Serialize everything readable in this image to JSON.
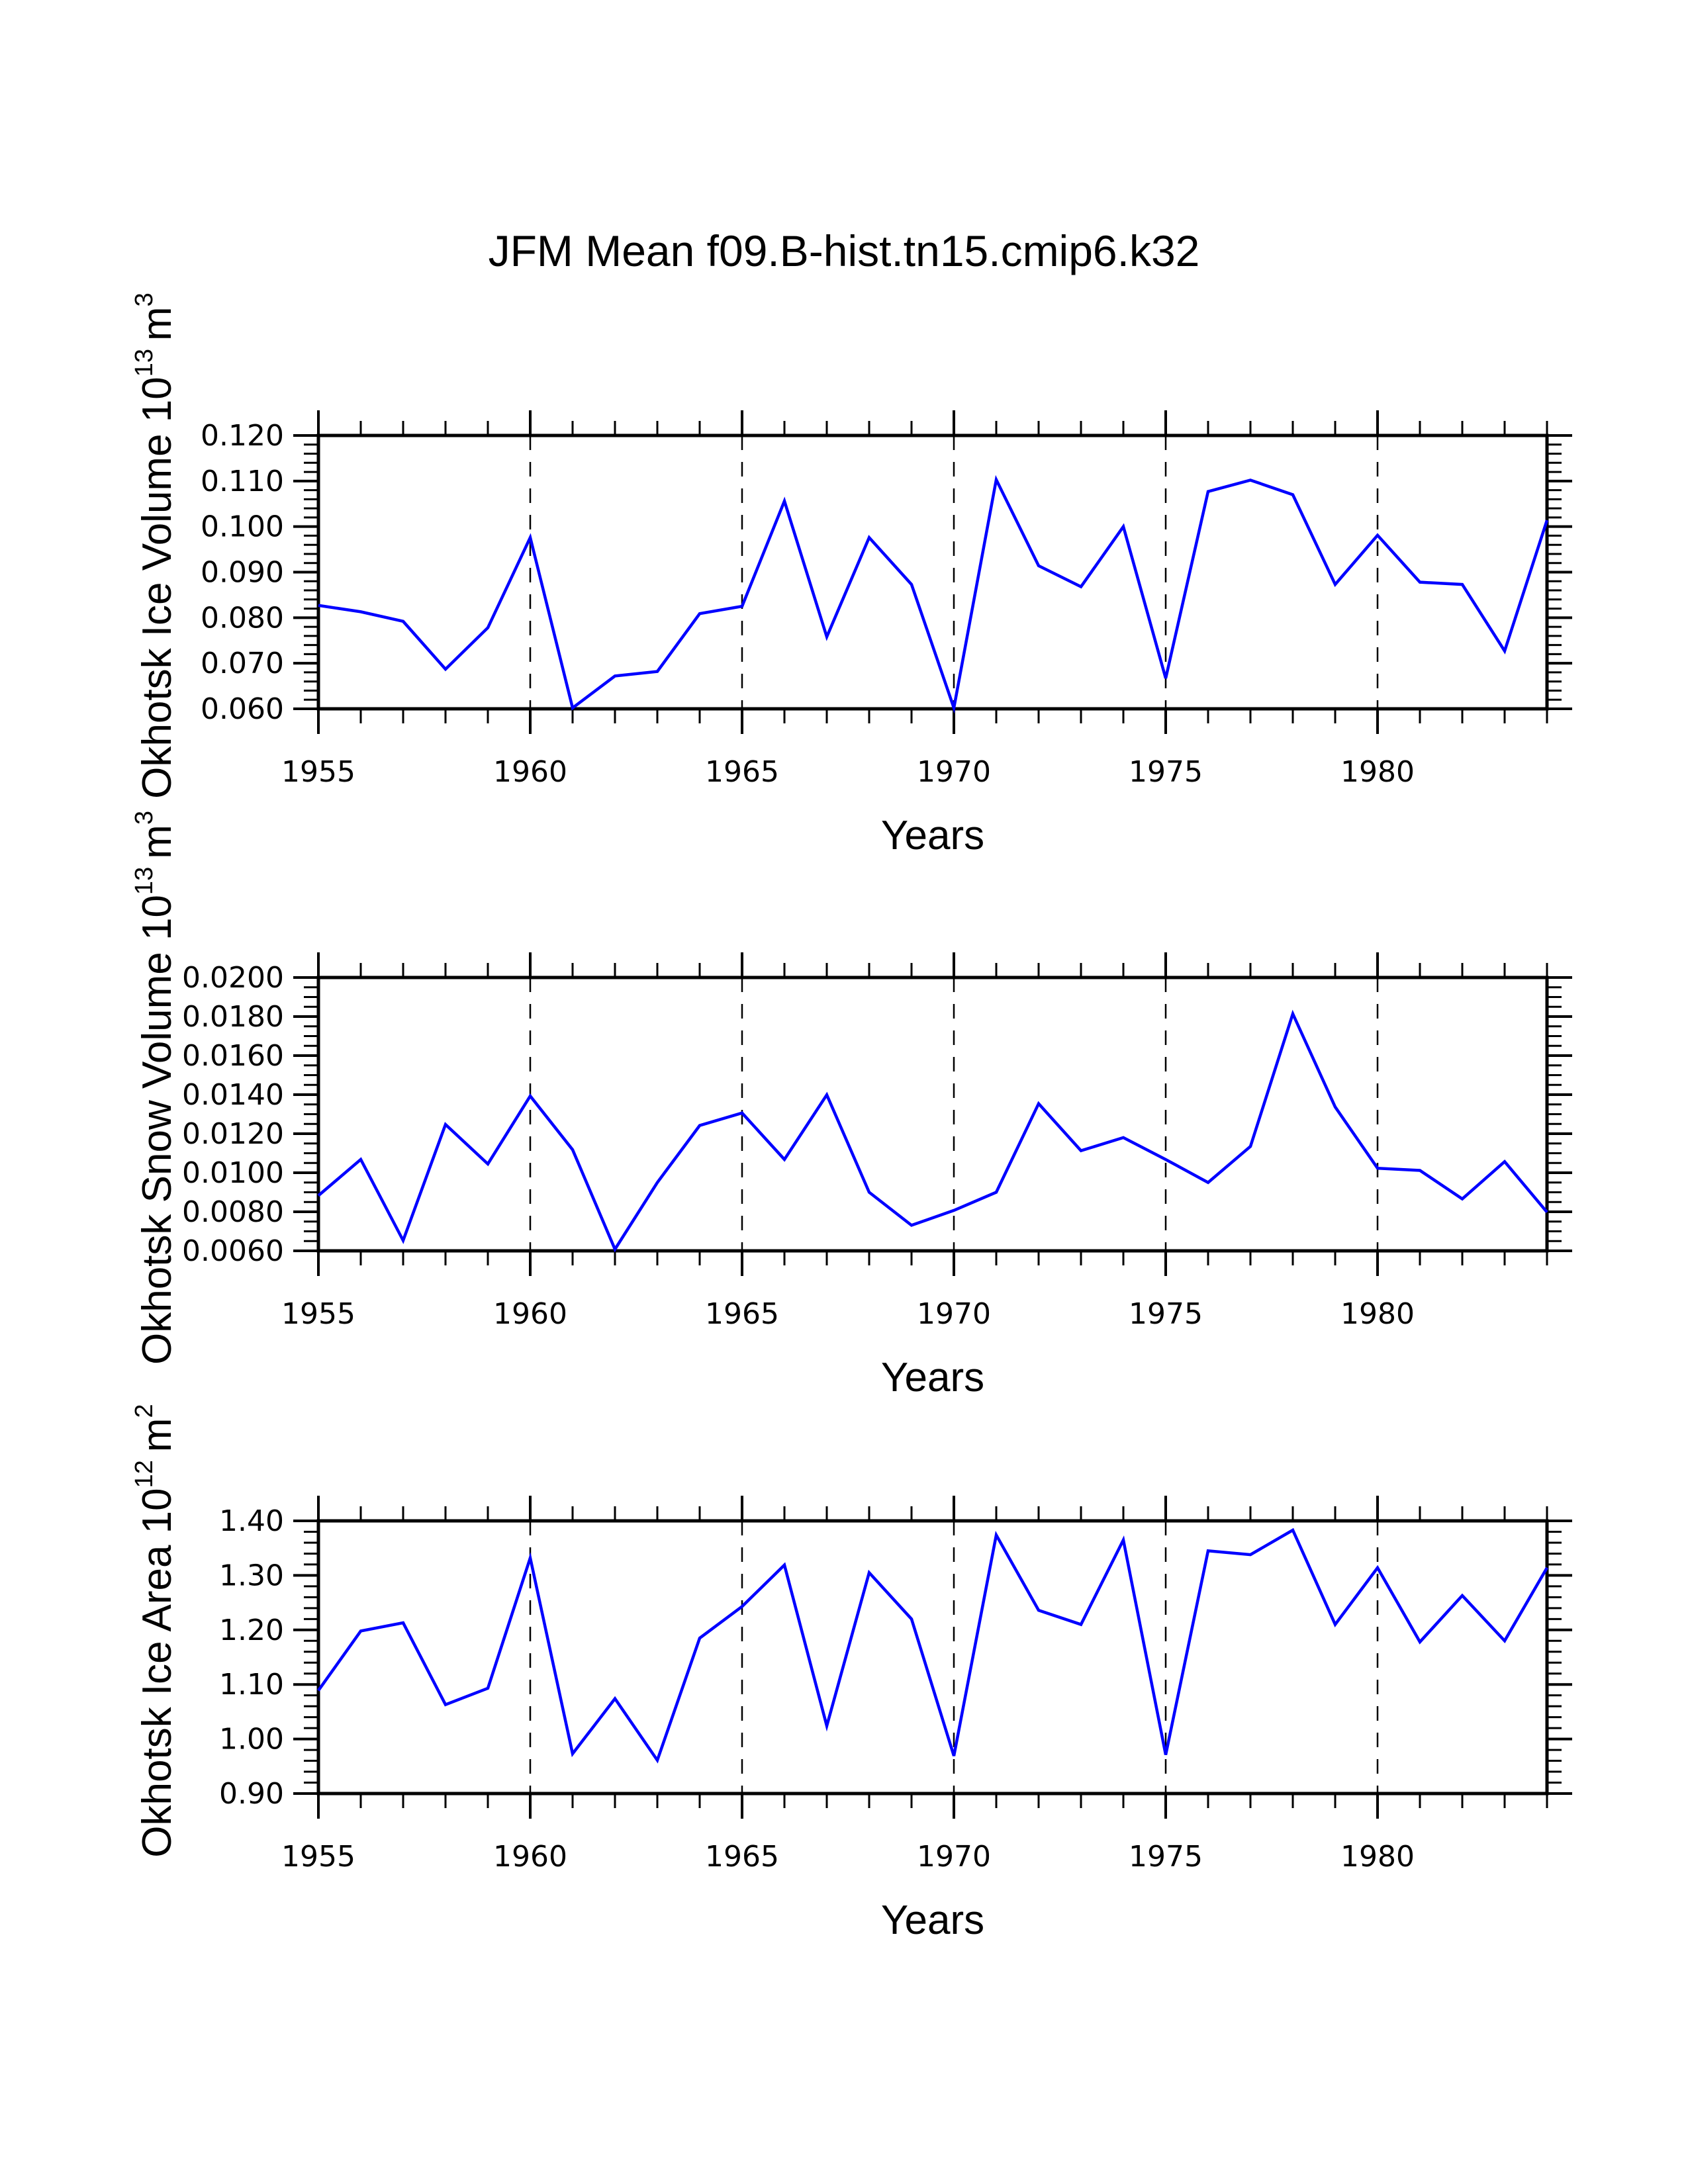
{
  "page": {
    "title": "JFM Mean f09.B-hist.tn15.cmip6.k32"
  },
  "colors": {
    "series": "#0000ff",
    "axes": "#000000",
    "background": "#ffffff"
  },
  "chart_data": [
    {
      "type": "line",
      "title": "JFM Mean f09.B-hist.tn15.cmip6.k32",
      "xlabel": "Years",
      "ylabel": "Okhotsk Ice Volume 10",
      "ylabel_exp": "13",
      "ylabel_unit": "m",
      "ylabel_unit_exp": "3",
      "x": [
        1955,
        1956,
        1957,
        1958,
        1959,
        1960,
        1961,
        1962,
        1963,
        1964,
        1965,
        1966,
        1967,
        1968,
        1969,
        1970,
        1971,
        1972,
        1973,
        1974,
        1975,
        1976,
        1977,
        1978,
        1979,
        1980,
        1981,
        1982,
        1983,
        1984
      ],
      "series": [
        {
          "name": "Okhotsk Ice Volume",
          "values": [
            0.0827,
            0.0813,
            0.0792,
            0.0687,
            0.0778,
            0.0976,
            0.0602,
            0.0672,
            0.0682,
            0.0809,
            0.0825,
            0.1056,
            0.0758,
            0.0976,
            0.0873,
            0.0602,
            0.1103,
            0.0914,
            0.0868,
            0.1,
            0.0667,
            0.1077,
            0.1102,
            0.107,
            0.0873,
            0.0981,
            0.0878,
            0.0873,
            0.0727,
            0.1014
          ]
        }
      ],
      "xlim": [
        1955,
        1984
      ],
      "ylim": [
        0.06,
        0.12
      ],
      "xticks": [
        1955,
        1960,
        1965,
        1970,
        1975,
        1980
      ],
      "xtick_labels": [
        "1955",
        "1960",
        "1965",
        "1970",
        "1975",
        "1980"
      ],
      "yticks": [
        0.06,
        0.07,
        0.08,
        0.09,
        0.1,
        0.11,
        0.12
      ],
      "ytick_labels": [
        "0.060",
        "0.070",
        "0.080",
        "0.090",
        "0.100",
        "0.110",
        "0.120"
      ],
      "y_minor_step": 0.002,
      "grid": "vertical dashed at major x ticks",
      "legend": "none"
    },
    {
      "type": "line",
      "xlabel": "Years",
      "ylabel": "Okhotsk Snow Volume 10",
      "ylabel_exp": "13",
      "ylabel_unit": "m",
      "ylabel_unit_exp": "3",
      "x": [
        1955,
        1956,
        1957,
        1958,
        1959,
        1960,
        1961,
        1962,
        1963,
        1964,
        1965,
        1966,
        1967,
        1968,
        1969,
        1970,
        1971,
        1972,
        1973,
        1974,
        1975,
        1976,
        1977,
        1978,
        1979,
        1980,
        1981,
        1982,
        1983,
        1984
      ],
      "series": [
        {
          "name": "Okhotsk Snow Volume",
          "values": [
            0.00883,
            0.01068,
            0.00653,
            0.01247,
            0.01045,
            0.01393,
            0.01118,
            0.00608,
            0.0095,
            0.01242,
            0.01306,
            0.01068,
            0.01399,
            0.009,
            0.00731,
            0.00807,
            0.009,
            0.01354,
            0.01113,
            0.0118,
            0.01068,
            0.0095,
            0.01135,
            0.01814,
            0.01337,
            0.01023,
            0.01012,
            0.00866,
            0.01057,
            0.00798
          ]
        }
      ],
      "xlim": [
        1955,
        1984
      ],
      "ylim": [
        0.006,
        0.02
      ],
      "xticks": [
        1955,
        1960,
        1965,
        1970,
        1975,
        1980
      ],
      "xtick_labels": [
        "1955",
        "1960",
        "1965",
        "1970",
        "1975",
        "1980"
      ],
      "yticks": [
        0.006,
        0.008,
        0.01,
        0.012,
        0.014,
        0.016,
        0.018,
        0.02
      ],
      "ytick_labels": [
        "0.0060",
        "0.0080",
        "0.0100",
        "0.0120",
        "0.0140",
        "0.0160",
        "0.0180",
        "0.0200"
      ],
      "y_minor_step": 0.0005,
      "grid": "vertical dashed at major x ticks",
      "legend": "none"
    },
    {
      "type": "line",
      "xlabel": "Years",
      "ylabel": "Okhotsk Ice Area 10",
      "ylabel_exp": "12",
      "ylabel_unit": "m",
      "ylabel_unit_exp": "2",
      "x": [
        1955,
        1956,
        1957,
        1958,
        1959,
        1960,
        1961,
        1962,
        1963,
        1964,
        1965,
        1966,
        1967,
        1968,
        1969,
        1970,
        1971,
        1972,
        1973,
        1974,
        1975,
        1976,
        1977,
        1978,
        1979,
        1980,
        1981,
        1982,
        1983,
        1984
      ],
      "series": [
        {
          "name": "Okhotsk Ice Area",
          "values": [
            1.089,
            1.198,
            1.213,
            1.063,
            1.093,
            1.332,
            0.973,
            1.074,
            0.961,
            1.185,
            1.243,
            1.319,
            1.024,
            1.305,
            1.22,
            0.969,
            1.374,
            1.236,
            1.21,
            1.365,
            0.971,
            1.345,
            1.338,
            1.383,
            1.21,
            1.314,
            1.178,
            1.263,
            1.18,
            1.314
          ]
        }
      ],
      "xlim": [
        1955,
        1984
      ],
      "ylim": [
        0.9,
        1.4
      ],
      "xticks": [
        1955,
        1960,
        1965,
        1970,
        1975,
        1980
      ],
      "xtick_labels": [
        "1955",
        "1960",
        "1965",
        "1970",
        "1975",
        "1980"
      ],
      "yticks": [
        0.9,
        1.0,
        1.1,
        1.2,
        1.3,
        1.4
      ],
      "ytick_labels": [
        "0.90",
        "1.00",
        "1.10",
        "1.20",
        "1.30",
        "1.40"
      ],
      "y_minor_step": 0.02,
      "grid": "vertical dashed at major x ticks",
      "legend": "none"
    }
  ]
}
